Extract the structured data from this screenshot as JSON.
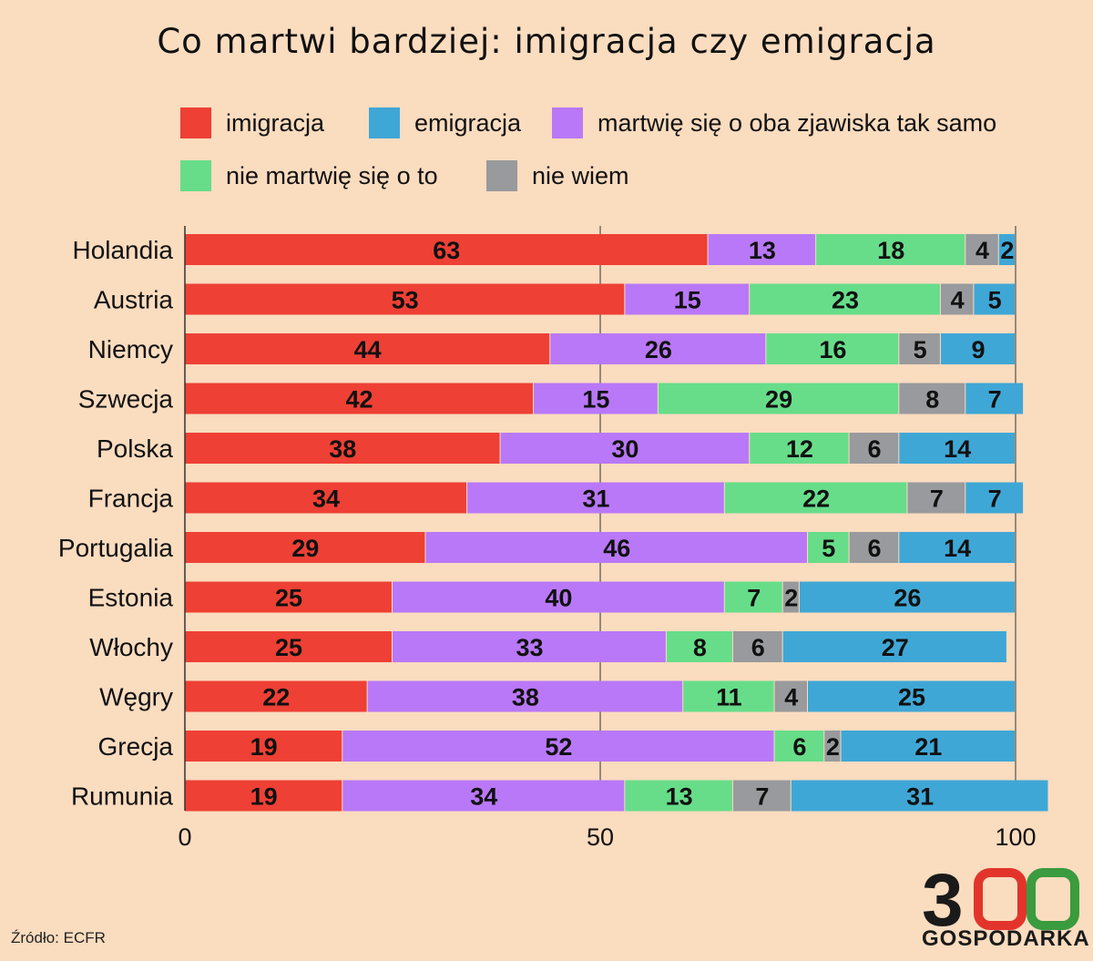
{
  "chart_data": {
    "type": "bar",
    "orientation": "horizontal",
    "stacked": true,
    "title": "Co martwi bardziej: imigracja czy emigracja",
    "categories": [
      "Holandia",
      "Austria",
      "Niemcy",
      "Szwecja",
      "Polska",
      "Francja",
      "Portugalia",
      "Estonia",
      "Włochy",
      "Węgry",
      "Grecja",
      "Rumunia"
    ],
    "series": [
      {
        "name": "imigracja",
        "color": "#ee4035",
        "values": [
          63,
          53,
          44,
          42,
          38,
          34,
          29,
          25,
          25,
          22,
          19,
          19
        ]
      },
      {
        "name": "martwię się o oba zjawiska tak samo",
        "color": "#b978f7",
        "values": [
          13,
          15,
          26,
          15,
          30,
          31,
          46,
          40,
          33,
          38,
          52,
          34
        ]
      },
      {
        "name": "nie martwię się o to",
        "color": "#67dd89",
        "values": [
          18,
          23,
          16,
          29,
          12,
          22,
          5,
          7,
          8,
          11,
          6,
          13
        ]
      },
      {
        "name": "nie wiem",
        "color": "#989a9d",
        "values": [
          4,
          4,
          5,
          8,
          6,
          7,
          6,
          2,
          6,
          4,
          2,
          7
        ]
      },
      {
        "name": "emigracja",
        "color": "#3fa7d6",
        "values": [
          2,
          5,
          9,
          7,
          14,
          7,
          14,
          26,
          27,
          25,
          21,
          31
        ]
      }
    ],
    "legend_order": [
      "imigracja",
      "emigracja",
      "martwię się o oba zjawiska tak samo",
      "nie martwię się o to",
      "nie wiem"
    ],
    "xlim": [
      0,
      100
    ],
    "xticks": [
      "0",
      "50",
      "100"
    ],
    "legend_position": "top-right"
  },
  "source": "Źródło: ECFR",
  "logo": {
    "number": "300",
    "name": "GOSPODARKA"
  }
}
